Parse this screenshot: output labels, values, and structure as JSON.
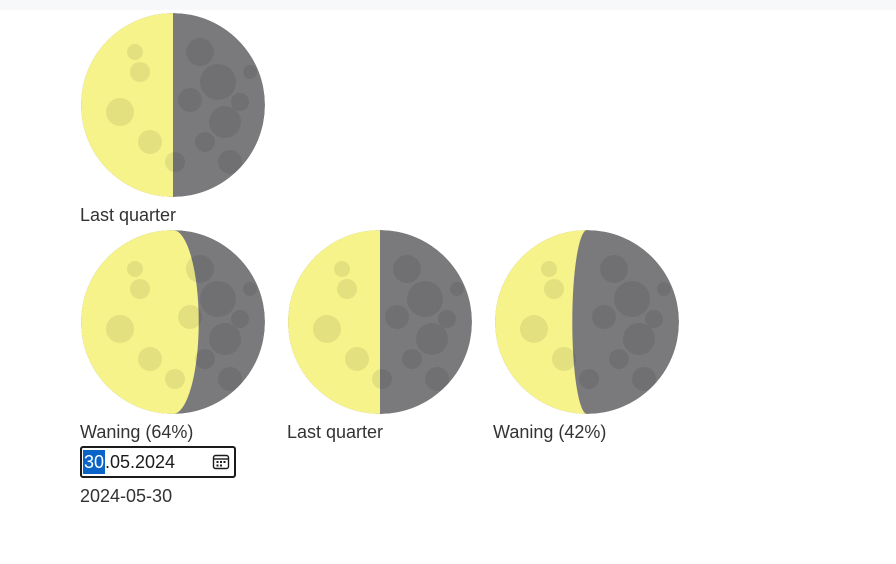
{
  "moons": [
    {
      "caption": "Last quarter",
      "illumination": 0.5
    },
    {
      "caption": "Waning (64%)",
      "illumination": 0.64
    },
    {
      "caption": "Last quarter",
      "illumination": 0.5
    },
    {
      "caption": "Waning (42%)",
      "illumination": 0.42
    }
  ],
  "date_picker": {
    "day_selected": "30",
    "rest": ".05.2024",
    "icon": "calendar-icon"
  },
  "iso_date": "2024-05-30",
  "colors": {
    "lit": "#f6f38a",
    "dark": "#7a7a7c",
    "selection": "#0a64c8"
  }
}
